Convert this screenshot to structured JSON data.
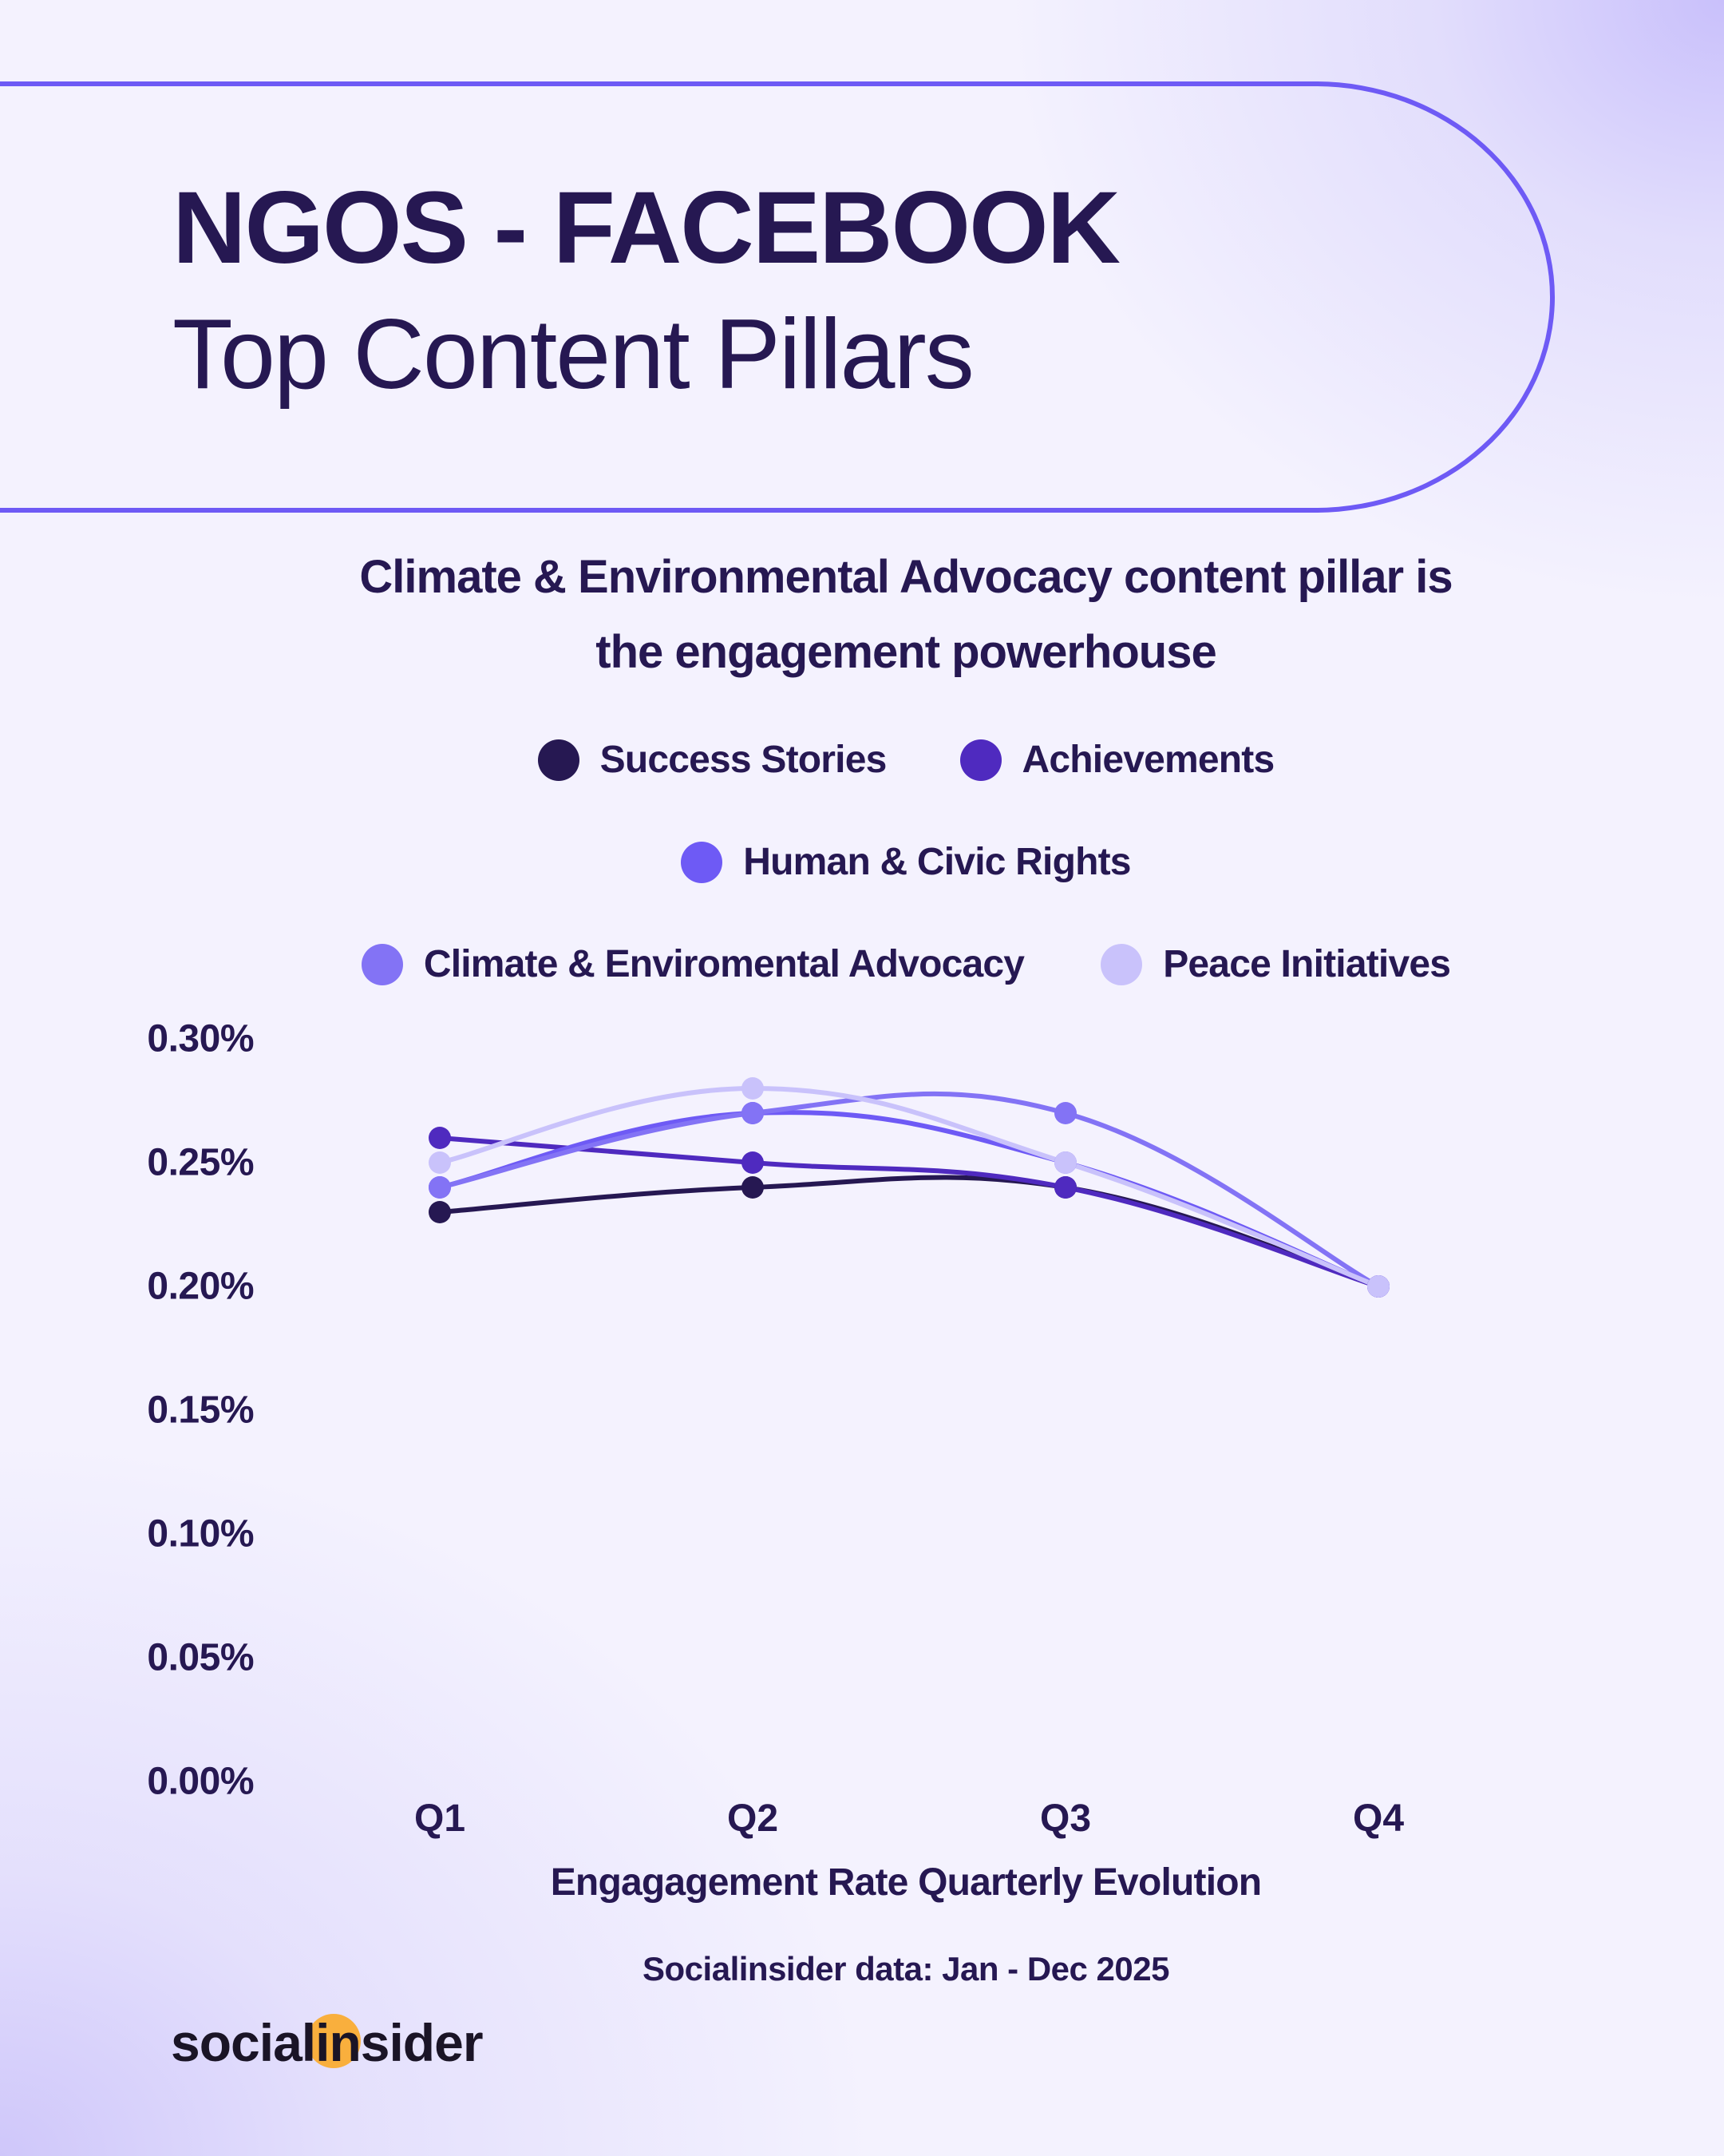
{
  "header": {
    "title": "NGOS - FACEBOOK",
    "subtitle": "Top Content Pillars"
  },
  "headline": {
    "line1": "Climate & Environmental Advocacy content pillar is",
    "line2": "the engagement powerhouse"
  },
  "legend": [
    {
      "label": "Success Stories",
      "color": "#261852"
    },
    {
      "label": "Achievements",
      "color": "#4F2ABF"
    },
    {
      "label": "Human & Civic Rights",
      "color": "#6E5AF5"
    },
    {
      "label": "Climate & Enviromental Advocacy",
      "color": "#8373F5"
    },
    {
      "label": "Peace Initiatives",
      "color": "#C9C2FB"
    }
  ],
  "y_ticks": [
    "0.30%",
    "0.25%",
    "0.20%",
    "0.15%",
    "0.10%",
    "0.05%",
    "0.00%"
  ],
  "x_ticks": [
    "Q1",
    "Q2",
    "Q3",
    "Q4"
  ],
  "axis_title": "Engagagement Rate Quarterly Evolution",
  "source": "Socialinsider data: Jan - Dec 2025",
  "logo": {
    "text": "socialinsider",
    "accent_color": "#F9AF3D"
  },
  "colors": {
    "accent": "#6E5AF5",
    "text": "#261852",
    "background": "#F4F2FE"
  },
  "chart_data": {
    "type": "line",
    "title": "Climate & Environmental Advocacy content pillar is the engagement powerhouse",
    "xlabel": "Engagagement Rate Quarterly Evolution",
    "ylabel": "",
    "categories": [
      "Q1",
      "Q2",
      "Q3",
      "Q4"
    ],
    "ylim": [
      0,
      0.3
    ],
    "y_unit": "%",
    "grid": false,
    "legend_position": "top",
    "smooth": true,
    "series": [
      {
        "name": "Success Stories",
        "color": "#261852",
        "values": [
          0.23,
          0.24,
          0.24,
          0.2
        ]
      },
      {
        "name": "Achievements",
        "color": "#4F2ABF",
        "values": [
          0.26,
          0.25,
          0.24,
          0.2
        ]
      },
      {
        "name": "Human & Civic Rights",
        "color": "#6E5AF5",
        "values": [
          0.24,
          0.27,
          0.25,
          0.2
        ]
      },
      {
        "name": "Climate & Enviromental Advocacy",
        "color": "#8373F5",
        "values": [
          0.24,
          0.27,
          0.27,
          0.2
        ]
      },
      {
        "name": "Peace Initiatives",
        "color": "#C9C2FB",
        "values": [
          0.25,
          0.28,
          0.25,
          0.2
        ]
      }
    ]
  }
}
